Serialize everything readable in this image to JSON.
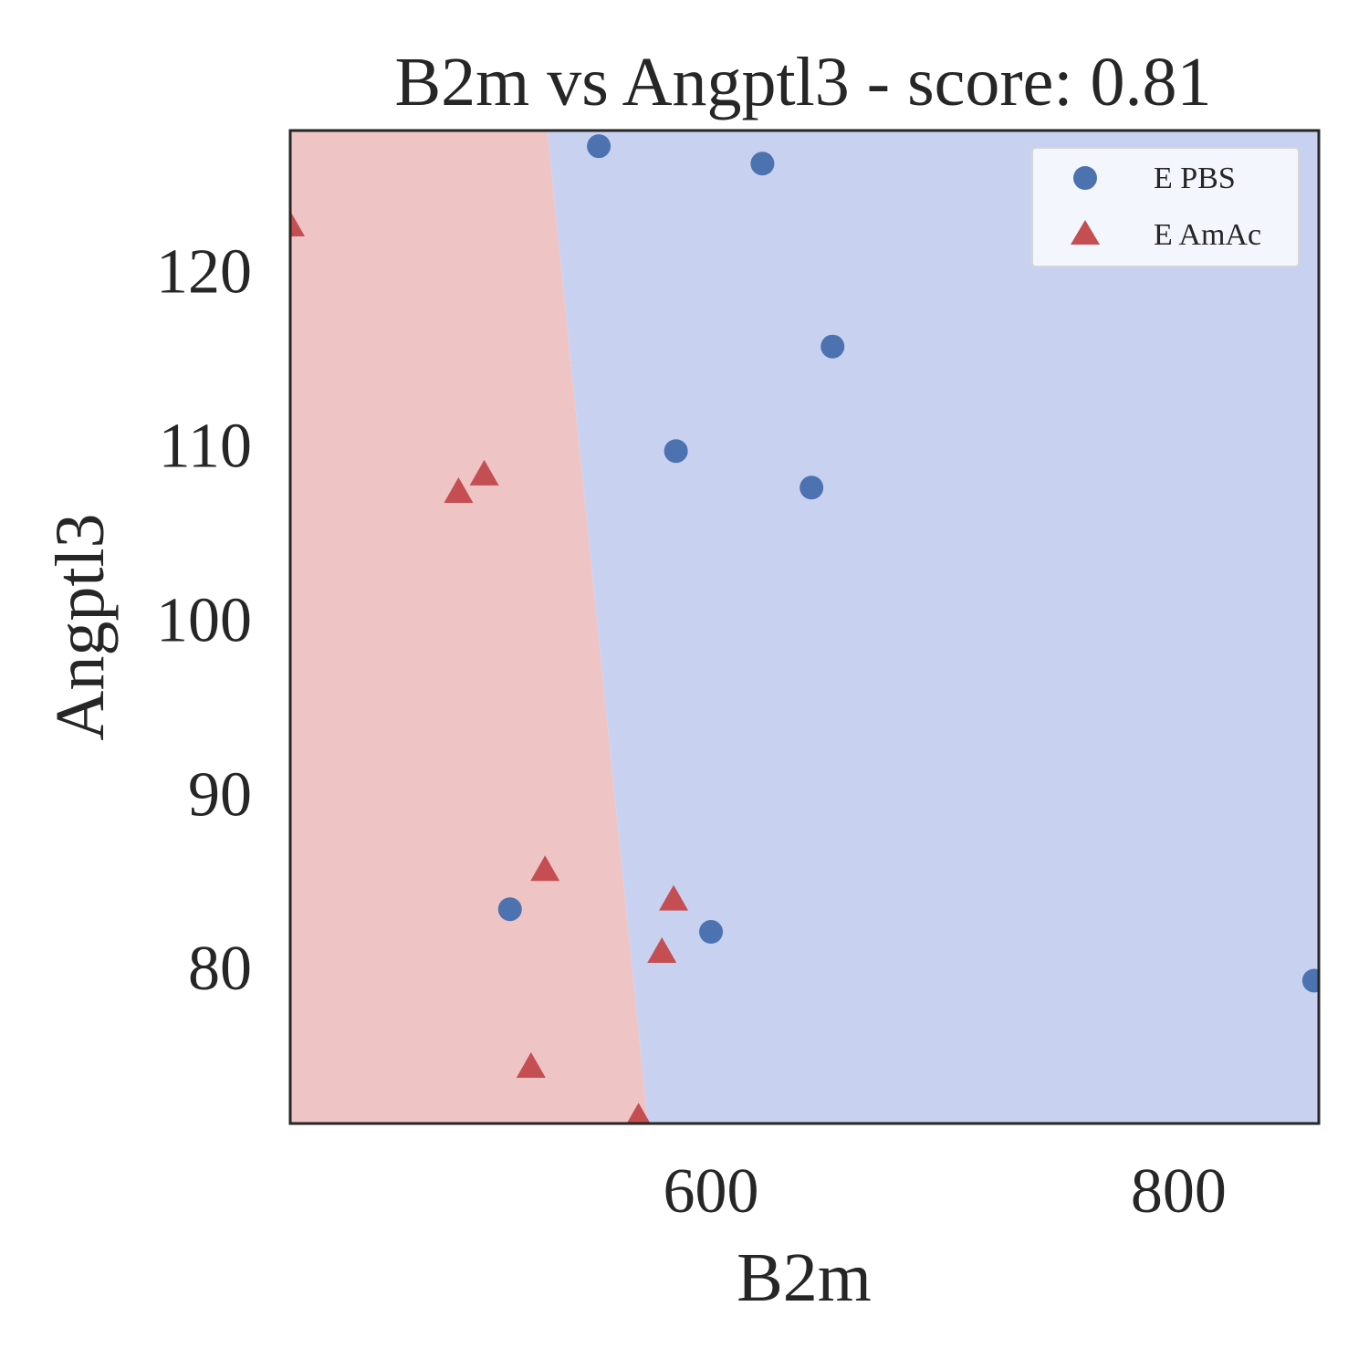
{
  "chart_data": {
    "type": "scatter",
    "title": "B2m vs Angptl3 - score: 0.81",
    "xlabel": "B2m",
    "ylabel": "Angptl3",
    "xlim": [
      420,
      860
    ],
    "ylim": [
      71,
      128
    ],
    "xticks": [
      600,
      800
    ],
    "yticks": [
      80,
      90,
      100,
      110,
      120
    ],
    "grid": false,
    "legend_position": "top-right",
    "decision_boundary": {
      "region_colors": {
        "left": "#eec4c4",
        "right": "#c9d1f1"
      },
      "line": [
        [
          530,
          128
        ],
        [
          573,
          71
        ]
      ]
    },
    "series": [
      {
        "name": "E PBS",
        "marker": "circle",
        "color": "#4c72b0",
        "points": [
          [
            552,
            127.1
          ],
          [
            622,
            126.1
          ],
          [
            652,
            115.6
          ],
          [
            585,
            109.6
          ],
          [
            643,
            107.5
          ],
          [
            514,
            83.3
          ],
          [
            600,
            82.0
          ],
          [
            858,
            79.2
          ]
        ]
      },
      {
        "name": "E AmAc",
        "marker": "triangle",
        "color": "#c44e52",
        "points": [
          [
            420,
            122.5
          ],
          [
            492,
            107.2
          ],
          [
            503,
            108.2
          ],
          [
            529,
            85.5
          ],
          [
            584,
            83.8
          ],
          [
            579,
            80.8
          ],
          [
            523,
            74.2
          ],
          [
            569,
            71.3
          ]
        ]
      }
    ]
  }
}
